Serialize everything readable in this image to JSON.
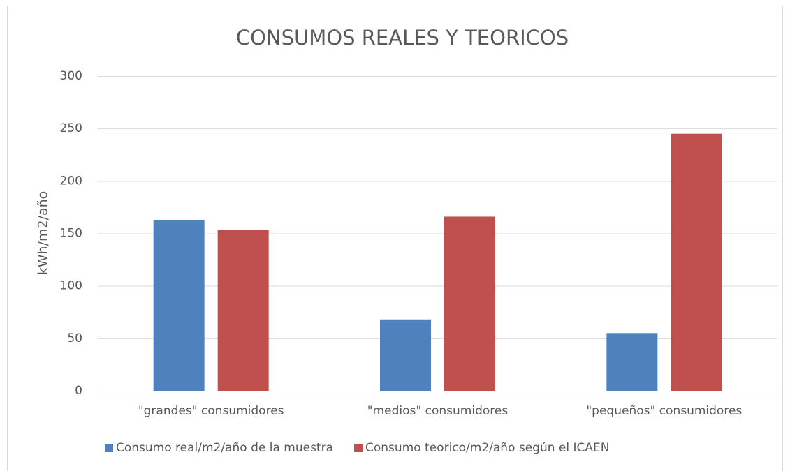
{
  "chart_data": {
    "type": "bar",
    "title": "CONSUMOS REALES Y TEORICOS",
    "y_label": "kWh/m2/año",
    "categories": [
      "\"grandes\" consumidores",
      "\"medios\" consumidores",
      "\"pequeños\" consumidores"
    ],
    "series": [
      {
        "name": "Consumo real/m2/año de la muestra",
        "color": "#4f81bd",
        "values": [
          163,
          68,
          55
        ]
      },
      {
        "name": "Consumo teorico/m2/año según el ICAEN",
        "color": "#c0504d",
        "values": [
          153,
          166,
          245
        ]
      }
    ],
    "ylim": [
      0,
      300
    ],
    "yticks": [
      0,
      50,
      100,
      150,
      200,
      250,
      300
    ],
    "grid": true,
    "legend": "bottom"
  }
}
